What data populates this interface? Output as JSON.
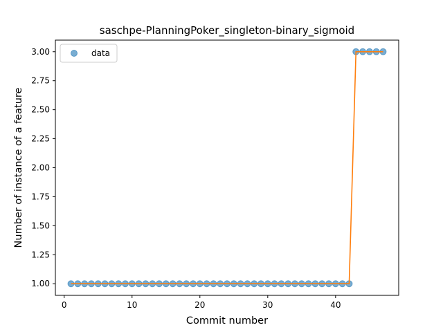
{
  "chart_data": {
    "type": "scatter",
    "title": "saschpe-PlanningPoker_singleton-binary_sigmoid",
    "xlabel": "Commit number",
    "ylabel": "Number of instance of a feature",
    "xlim": [
      -1.3,
      49.3
    ],
    "ylim": [
      0.9,
      3.1
    ],
    "x_ticks": [
      0,
      10,
      20,
      30,
      40
    ],
    "x_tick_labels": [
      "0",
      "10",
      "20",
      "30",
      "40"
    ],
    "y_ticks": [
      1.0,
      1.25,
      1.5,
      1.75,
      2.0,
      2.25,
      2.5,
      2.75,
      3.0
    ],
    "y_tick_labels": [
      "1.00",
      "1.25",
      "1.50",
      "1.75",
      "2.00",
      "2.25",
      "2.50",
      "2.75",
      "3.00"
    ],
    "legend_position": "top-left",
    "grid": false,
    "series": [
      {
        "name": "data",
        "kind": "points",
        "color": "#1f77b4",
        "x": [
          1,
          2,
          3,
          4,
          5,
          6,
          7,
          8,
          9,
          10,
          11,
          12,
          13,
          14,
          15,
          16,
          17,
          18,
          19,
          20,
          21,
          22,
          23,
          24,
          25,
          26,
          27,
          28,
          29,
          30,
          31,
          32,
          33,
          34,
          35,
          36,
          37,
          38,
          39,
          40,
          41,
          42,
          43,
          44,
          45,
          46,
          47
        ],
        "y": [
          1,
          1,
          1,
          1,
          1,
          1,
          1,
          1,
          1,
          1,
          1,
          1,
          1,
          1,
          1,
          1,
          1,
          1,
          1,
          1,
          1,
          1,
          1,
          1,
          1,
          1,
          1,
          1,
          1,
          1,
          1,
          1,
          1,
          1,
          1,
          1,
          1,
          1,
          1,
          1,
          1,
          1,
          3,
          3,
          3,
          3,
          3
        ]
      },
      {
        "kind": "line",
        "color": "#ff7f0e",
        "x": [
          1,
          2,
          3,
          4,
          5,
          6,
          7,
          8,
          9,
          10,
          11,
          12,
          13,
          14,
          15,
          16,
          17,
          18,
          19,
          20,
          21,
          22,
          23,
          24,
          25,
          26,
          27,
          28,
          29,
          30,
          31,
          32,
          33,
          34,
          35,
          36,
          37,
          38,
          39,
          40,
          41,
          42,
          43,
          44,
          45,
          46,
          47
        ],
        "y": [
          1,
          1,
          1,
          1,
          1,
          1,
          1,
          1,
          1,
          1,
          1,
          1,
          1,
          1,
          1,
          1,
          1,
          1,
          1,
          1,
          1,
          1,
          1,
          1,
          1,
          1,
          1,
          1,
          1,
          1,
          1,
          1,
          1,
          1,
          1,
          1,
          1,
          1,
          1,
          1,
          1,
          1,
          3,
          3,
          3,
          3,
          3
        ]
      }
    ]
  }
}
